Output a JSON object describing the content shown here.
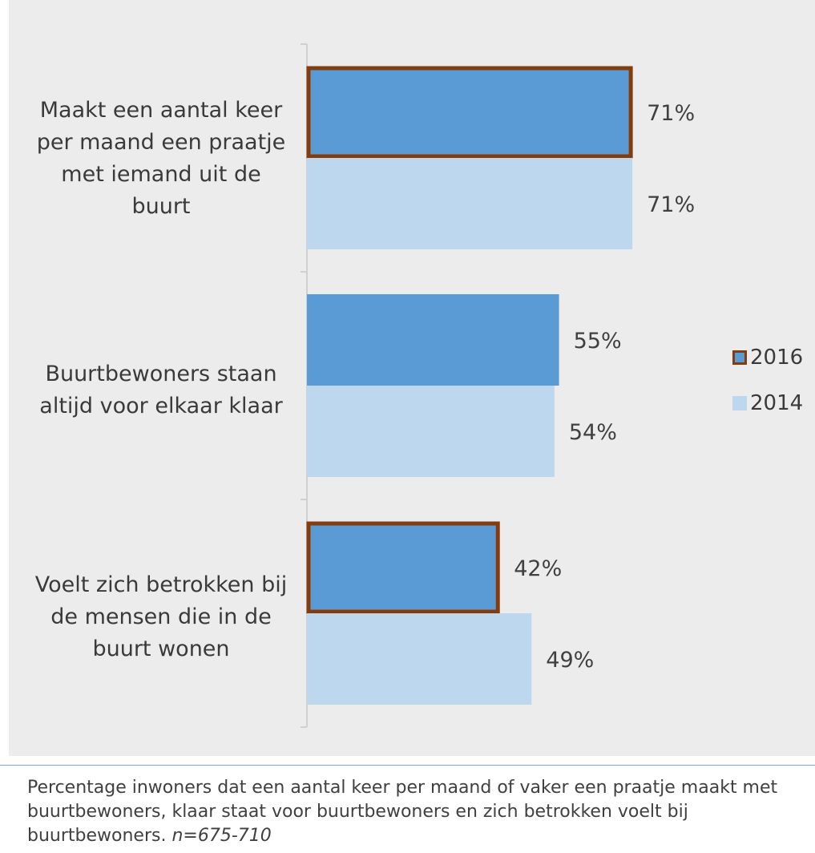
{
  "chart_data": {
    "type": "bar",
    "orientation": "horizontal",
    "categories": [
      "Maakt een aantal keer per maand een praatje met iemand uit de buurt",
      "Buurtbewoners staan altijd voor elkaar klaar",
      "Voelt zich betrokken bij de mensen die in de buurt wonen"
    ],
    "series": [
      {
        "name": "2016",
        "values": [
          71,
          55,
          42
        ],
        "labels": [
          "71%",
          "55%",
          "42%"
        ],
        "color": "#5b9bd5",
        "outline": "#843c0c",
        "outlined": [
          true,
          false,
          true
        ]
      },
      {
        "name": "2014",
        "values": [
          71,
          54,
          49
        ],
        "labels": [
          "71%",
          "54%",
          "49%"
        ],
        "color": "#bdd7ee"
      }
    ],
    "xlim": [
      0,
      100
    ],
    "legend_position": "right",
    "grid": false
  },
  "caption": {
    "text": "Percentage inwoners dat een aantal keer per maand of vaker een praatje maakt met buurtbewoners, klaar staat voor buurtbewoners en zich betrokken voelt bij buurtbewoners.",
    "note": "n=675-710"
  }
}
